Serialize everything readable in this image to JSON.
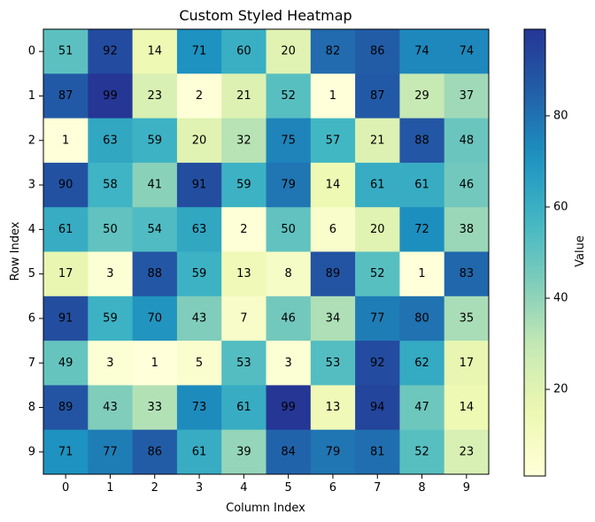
{
  "chart_data": {
    "type": "heatmap",
    "title": "Custom Styled Heatmap",
    "xlabel": "Column Index",
    "ylabel": "Row Index",
    "x_categories": [
      "0",
      "1",
      "2",
      "3",
      "4",
      "5",
      "6",
      "7",
      "8",
      "9"
    ],
    "y_categories": [
      "0",
      "1",
      "2",
      "3",
      "4",
      "5",
      "6",
      "7",
      "8",
      "9"
    ],
    "values": [
      [
        51,
        92,
        14,
        71,
        60,
        20,
        82,
        86,
        74,
        74
      ],
      [
        87,
        99,
        23,
        2,
        21,
        52,
        1,
        87,
        29,
        37
      ],
      [
        1,
        63,
        59,
        20,
        32,
        75,
        57,
        21,
        88,
        48
      ],
      [
        90,
        58,
        41,
        91,
        59,
        79,
        14,
        61,
        61,
        46
      ],
      [
        61,
        50,
        54,
        63,
        2,
        50,
        6,
        20,
        72,
        38
      ],
      [
        17,
        3,
        88,
        59,
        13,
        8,
        89,
        52,
        1,
        83
      ],
      [
        91,
        59,
        70,
        43,
        7,
        46,
        34,
        77,
        80,
        35
      ],
      [
        49,
        3,
        1,
        5,
        53,
        3,
        53,
        92,
        62,
        17
      ],
      [
        89,
        43,
        33,
        73,
        61,
        99,
        13,
        94,
        47,
        14
      ],
      [
        71,
        77,
        86,
        61,
        39,
        84,
        79,
        81,
        52,
        23
      ]
    ],
    "colormap": "YlGnBu",
    "colorbar": {
      "label": "Value",
      "range": [
        1,
        99
      ],
      "ticks": [
        20,
        40,
        60,
        80
      ],
      "tick_labels": [
        "20",
        "40",
        "60",
        "80"
      ]
    }
  }
}
